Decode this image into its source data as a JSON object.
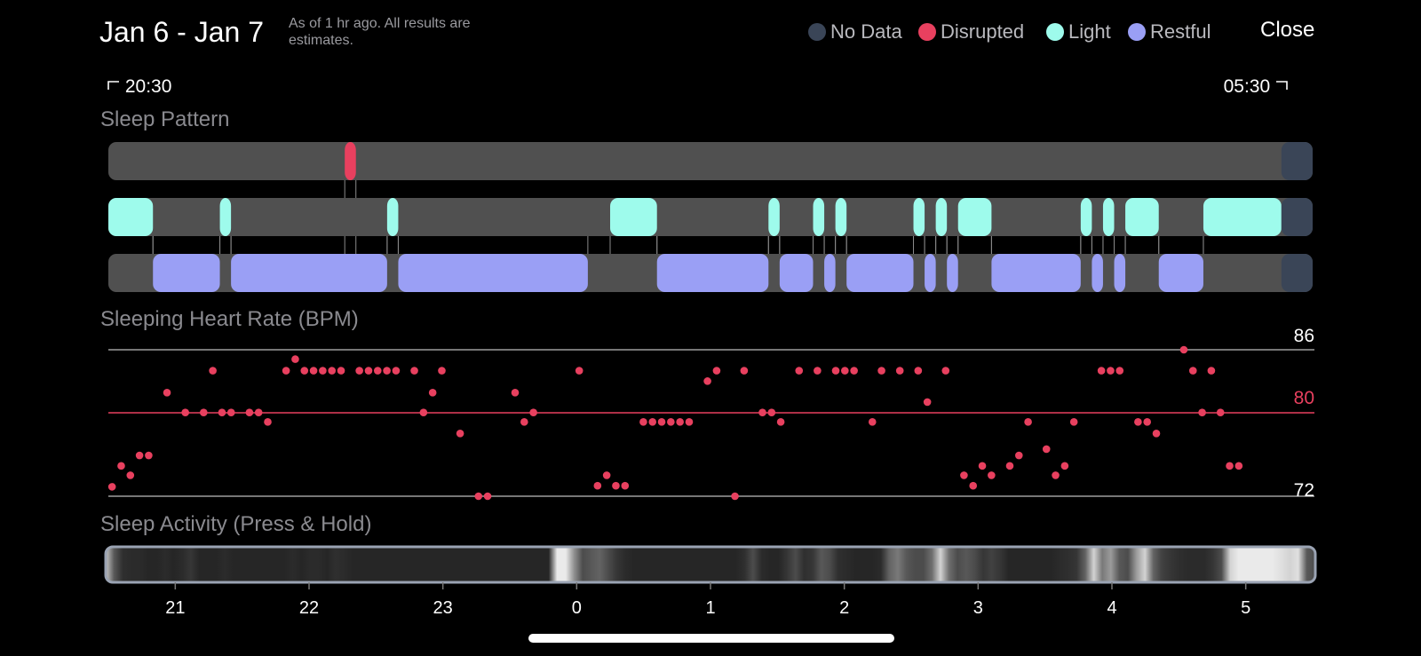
{
  "header": {
    "title": "Jan 6 - Jan 7",
    "as_of": "As of 1 hr ago. All results are estimates.",
    "close_label": "Close"
  },
  "legend": [
    {
      "label": "No Data",
      "color": "#3a4557"
    },
    {
      "label": "Disrupted",
      "color": "#e8405f"
    },
    {
      "label": "Light",
      "color": "#9efbec"
    },
    {
      "label": "Restful",
      "color": "#9a9ff5"
    }
  ],
  "timeline": {
    "start": "20:30",
    "end": "05:30",
    "axis_ticks": [
      "21",
      "22",
      "23",
      "0",
      "1",
      "2",
      "3",
      "4",
      "5"
    ]
  },
  "sleep_pattern": {
    "title": "Sleep Pattern",
    "disrupted": [
      [
        10.6,
        11.1
      ]
    ],
    "light": [
      [
        0,
        2.0
      ],
      [
        5.0,
        5.5
      ],
      [
        12.5,
        13.0
      ],
      [
        22.5,
        24.6
      ],
      [
        29.6,
        30.1
      ],
      [
        31.6,
        32.1
      ],
      [
        32.6,
        33.1
      ],
      [
        36.1,
        36.6
      ],
      [
        37.1,
        37.6
      ],
      [
        38.1,
        39.6
      ],
      [
        43.6,
        44.1
      ],
      [
        44.6,
        45.1
      ],
      [
        45.6,
        47.1
      ],
      [
        49.1,
        52.6
      ]
    ],
    "restful": [
      [
        2.0,
        5.0
      ],
      [
        5.5,
        12.5
      ],
      [
        13.0,
        21.5
      ],
      [
        24.6,
        29.6
      ],
      [
        30.1,
        31.6
      ],
      [
        32.1,
        32.6
      ],
      [
        33.1,
        36.1
      ],
      [
        36.6,
        37.1
      ],
      [
        37.6,
        38.1
      ],
      [
        39.6,
        43.6
      ],
      [
        44.1,
        44.6
      ],
      [
        45.1,
        45.6
      ],
      [
        47.1,
        49.1
      ]
    ],
    "no_data": [
      [
        52.6,
        54.0
      ]
    ]
  },
  "heart_rate": {
    "title": "Sleeping Heart Rate (BPM)",
    "max_label": "86",
    "avg_label": "80",
    "min_label": "72",
    "ylim": [
      72,
      86
    ],
    "avg": 80,
    "points": [
      [
        0.25,
        72.9
      ],
      [
        0.75,
        74.9
      ],
      [
        1.25,
        74.0
      ],
      [
        1.75,
        75.9
      ],
      [
        2.25,
        75.9
      ],
      [
        3.25,
        81.9
      ],
      [
        4.25,
        80.0
      ],
      [
        5.25,
        80.0
      ],
      [
        5.75,
        84.0
      ],
      [
        6.25,
        80.0
      ],
      [
        6.75,
        80.0
      ],
      [
        7.75,
        80.0
      ],
      [
        8.25,
        80.0
      ],
      [
        8.75,
        79.1
      ],
      [
        9.75,
        84.0
      ],
      [
        10.25,
        85.1
      ],
      [
        10.75,
        84.0
      ],
      [
        11.25,
        84.0
      ],
      [
        11.75,
        84.0
      ],
      [
        12.25,
        84.0
      ],
      [
        12.75,
        84.0
      ],
      [
        13.75,
        84.0
      ],
      [
        14.25,
        84.0
      ],
      [
        14.75,
        84.0
      ],
      [
        15.25,
        84.0
      ],
      [
        15.75,
        84.0
      ],
      [
        16.75,
        84.0
      ],
      [
        17.25,
        80.0
      ],
      [
        17.75,
        81.9
      ],
      [
        18.25,
        84.0
      ],
      [
        19.25,
        78.0
      ],
      [
        20.25,
        72.0
      ],
      [
        20.75,
        72.0
      ],
      [
        22.25,
        81.9
      ],
      [
        22.75,
        79.1
      ],
      [
        23.25,
        80.0
      ],
      [
        25.75,
        84.0
      ],
      [
        26.75,
        73.0
      ],
      [
        27.25,
        74.0
      ],
      [
        27.75,
        73.0
      ],
      [
        28.25,
        73.0
      ],
      [
        29.25,
        79.1
      ],
      [
        29.75,
        79.1
      ],
      [
        30.25,
        79.1
      ],
      [
        30.75,
        79.1
      ],
      [
        31.25,
        79.1
      ],
      [
        31.75,
        79.1
      ],
      [
        32.75,
        83.0
      ],
      [
        33.25,
        84.0
      ],
      [
        34.25,
        72.0
      ],
      [
        34.75,
        84.0
      ],
      [
        35.75,
        80.0
      ],
      [
        36.25,
        80.0
      ],
      [
        36.75,
        79.1
      ],
      [
        37.75,
        84.0
      ],
      [
        38.75,
        84.0
      ],
      [
        39.75,
        84.0
      ],
      [
        40.25,
        84.0
      ],
      [
        40.75,
        84.0
      ],
      [
        41.75,
        79.1
      ],
      [
        42.25,
        84.0
      ],
      [
        43.25,
        84.0
      ],
      [
        44.25,
        84.0
      ],
      [
        44.75,
        81.0
      ],
      [
        45.75,
        84.0
      ],
      [
        46.75,
        74.0
      ],
      [
        47.25,
        73.0
      ],
      [
        47.75,
        74.9
      ],
      [
        48.25,
        74.0
      ],
      [
        49.25,
        74.9
      ],
      [
        49.75,
        75.9
      ],
      [
        50.25,
        79.1
      ],
      [
        51.25,
        76.5
      ],
      [
        51.75,
        74.0
      ],
      [
        52.25,
        74.9
      ],
      [
        52.75,
        79.1
      ],
      [
        54.25,
        84.0
      ],
      [
        54.75,
        84.0
      ],
      [
        55.25,
        84.0
      ],
      [
        56.25,
        79.1
      ],
      [
        56.75,
        79.1
      ],
      [
        57.25,
        78.0
      ],
      [
        58.75,
        86.0
      ],
      [
        59.25,
        84.0
      ],
      [
        59.75,
        80.0
      ],
      [
        60.25,
        84.0
      ],
      [
        60.75,
        80.0
      ],
      [
        61.25,
        74.9
      ],
      [
        61.75,
        74.9
      ]
    ]
  },
  "sleep_activity": {
    "title": "Sleep Activity (Press & Hold)",
    "intensity": [
      0.8,
      0.3,
      0.12,
      0.1,
      0.1,
      0.08,
      0.08,
      0.1,
      0.08,
      0.1,
      0.15,
      0.08,
      0.08,
      0.08,
      0.1,
      0.08,
      0.08,
      0.08,
      0.08,
      0.08,
      0.08,
      0.08,
      0.1,
      0.08,
      0.1,
      0.1,
      0.08,
      0.12,
      0.1,
      0.08,
      0.08,
      0.08,
      0.08,
      0.08,
      0.08,
      0.08,
      0.08,
      0.08,
      0.08,
      0.08,
      0.08,
      0.08,
      0.08,
      0.08,
      0.08,
      0.08,
      0.08,
      0.08,
      0.08,
      0.08,
      0.08,
      0.08,
      0.08,
      0.95,
      0.95,
      0.55,
      0.25,
      0.3,
      0.35,
      0.25,
      0.15,
      0.1,
      0.08,
      0.08,
      0.08,
      0.08,
      0.08,
      0.08,
      0.08,
      0.08,
      0.08,
      0.08,
      0.08,
      0.08,
      0.08,
      0.12,
      0.25,
      0.1,
      0.08,
      0.08,
      0.15,
      0.25,
      0.12,
      0.15,
      0.3,
      0.25,
      0.12,
      0.1,
      0.08,
      0.08,
      0.08,
      0.1,
      0.35,
      0.45,
      0.3,
      0.25,
      0.25,
      0.4,
      0.85,
      0.4,
      0.25,
      0.3,
      0.25,
      0.15,
      0.2,
      0.15,
      0.08,
      0.08,
      0.08,
      0.08,
      0.08,
      0.08,
      0.1,
      0.12,
      0.15,
      0.35,
      0.85,
      0.45,
      0.6,
      0.3,
      0.25,
      0.6,
      0.85,
      0.35,
      0.2,
      0.15,
      0.12,
      0.1,
      0.1,
      0.1,
      0.15,
      0.25,
      0.85,
      0.95,
      0.95,
      0.95,
      0.95,
      0.95,
      0.9,
      0.85,
      0.9,
      0.3,
      0.25
    ]
  }
}
